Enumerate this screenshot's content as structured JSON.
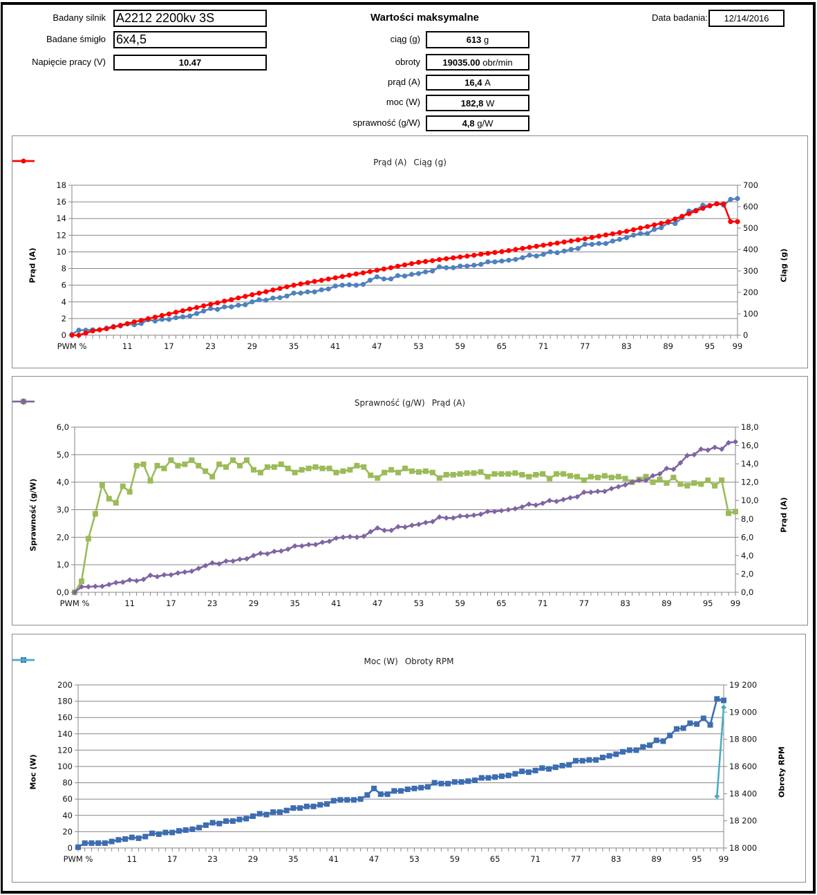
{
  "header": {
    "motor_label": "Badany silnik",
    "motor_value": "A2212 2200kv 3S",
    "prop_label": "Badane śmigło",
    "prop_value": "6x4,5",
    "voltage_label": "Napięcie pracy (V)",
    "voltage_value": "10.47",
    "max_title": "Wartości maksymalne",
    "date_label": "Data badania:",
    "date_value": "12/14/2016",
    "max": [
      {
        "label": "ciąg (g)",
        "value": "613",
        "unit": "g"
      },
      {
        "label": "obroty",
        "value": "19035.00",
        "unit": "obr/min"
      },
      {
        "label": "prąd  (A)",
        "value": "16,4",
        "unit": "A"
      },
      {
        "label": "moc  (W)",
        "value": "182,8",
        "unit": "W"
      },
      {
        "label": "sprawność (g/W)",
        "value": "4,8",
        "unit": "g/W"
      }
    ]
  },
  "chart_data": [
    {
      "type": "line",
      "title": "",
      "categories": [
        "PWM %",
        "4",
        "5",
        "6",
        "7",
        "8",
        "9",
        "10",
        "11",
        "12",
        "13",
        "14",
        "15",
        "16",
        "17",
        "18",
        "19",
        "20",
        "21",
        "22",
        "23",
        "24",
        "25",
        "26",
        "27",
        "28",
        "29",
        "30",
        "31",
        "32",
        "33",
        "34",
        "35",
        "36",
        "37",
        "38",
        "39",
        "40",
        "41",
        "42",
        "43",
        "44",
        "45",
        "46",
        "47",
        "48",
        "49",
        "50",
        "51",
        "52",
        "53",
        "54",
        "55",
        "56",
        "57",
        "58",
        "59",
        "60",
        "61",
        "62",
        "63",
        "64",
        "65",
        "66",
        "67",
        "68",
        "69",
        "70",
        "71",
        "72",
        "73",
        "74",
        "75",
        "76",
        "77",
        "78",
        "79",
        "80",
        "81",
        "82",
        "83",
        "84",
        "85",
        "86",
        "87",
        "88",
        "89",
        "90",
        "91",
        "92",
        "93",
        "94",
        "95",
        "96",
        "97",
        "98",
        "99"
      ],
      "x_tick_labels": [
        "PWM %",
        "11",
        "17",
        "23",
        "29",
        "35",
        "41",
        "47",
        "53",
        "59",
        "65",
        "71",
        "77",
        "83",
        "89",
        "95",
        "99"
      ],
      "y_left": {
        "label": "Prąd (A)",
        "min": 0,
        "max": 18,
        "grid_step": 2,
        "label_step": 2,
        "tick_labels": [
          "0",
          "2",
          "4",
          "6",
          "8",
          "10",
          "12",
          "14",
          "16",
          "18"
        ]
      },
      "y_right": {
        "label": "Ciąg (g)",
        "min": 0,
        "max": 700,
        "label_step": 100,
        "tick_labels": [
          "0",
          "100",
          "200",
          "300",
          "400",
          "500",
          "600",
          "700"
        ]
      },
      "legend_position": "top",
      "grid": true,
      "series": [
        {
          "name": "Prąd (A)",
          "axis": "left",
          "color": "#4F81BD",
          "marker": "circle",
          "values": [
            0.1,
            0.6,
            0.6,
            0.65,
            0.65,
            0.85,
            1.05,
            1.1,
            1.35,
            1.25,
            1.4,
            1.85,
            1.7,
            1.9,
            1.9,
            2.1,
            2.2,
            2.3,
            2.6,
            2.9,
            3.2,
            3.1,
            3.4,
            3.4,
            3.6,
            3.65,
            4.0,
            4.25,
            4.2,
            4.45,
            4.5,
            4.7,
            5.05,
            5.05,
            5.2,
            5.2,
            5.45,
            5.55,
            5.9,
            6.0,
            6.05,
            6.0,
            6.1,
            6.6,
            7.0,
            6.75,
            6.75,
            7.15,
            7.1,
            7.3,
            7.4,
            7.6,
            7.7,
            8.2,
            8.1,
            8.1,
            8.3,
            8.3,
            8.4,
            8.5,
            8.8,
            8.8,
            8.9,
            9.0,
            9.1,
            9.3,
            9.6,
            9.5,
            9.7,
            10.0,
            9.9,
            10.1,
            10.3,
            10.4,
            10.9,
            10.9,
            11.0,
            11.0,
            11.3,
            11.5,
            11.7,
            12.0,
            12.2,
            12.2,
            12.7,
            12.9,
            13.5,
            13.4,
            14.1,
            14.9,
            15.0,
            15.6,
            15.5,
            15.8,
            15.6,
            16.3,
            16.4
          ]
        },
        {
          "name": "Ciąg (g)",
          "axis": "right",
          "color": "#FF0000",
          "marker": "circle",
          "values": [
            0,
            0,
            10,
            20,
            25,
            30,
            38,
            46,
            54,
            62,
            69,
            77,
            84,
            92,
            99,
            107,
            114,
            122,
            129,
            137,
            144,
            151,
            159,
            166,
            174,
            181,
            189,
            196,
            203,
            211,
            218,
            226,
            233,
            239,
            245,
            251,
            256,
            262,
            268,
            274,
            280,
            286,
            291,
            297,
            303,
            309,
            315,
            322,
            328,
            334,
            340,
            344,
            348,
            353,
            357,
            361,
            365,
            369,
            373,
            378,
            382,
            386,
            390,
            395,
            400,
            405,
            410,
            415,
            420,
            425,
            430,
            435,
            440,
            445,
            450,
            456,
            462,
            468,
            473,
            479,
            485,
            492,
            500,
            507,
            515,
            522,
            530,
            542,
            555,
            567,
            580,
            592,
            605,
            613,
            613,
            530,
            530
          ]
        }
      ]
    },
    {
      "type": "line",
      "title": "",
      "categories": [
        "PWM %",
        "4",
        "5",
        "6",
        "7",
        "8",
        "9",
        "10",
        "11",
        "12",
        "13",
        "14",
        "15",
        "16",
        "17",
        "18",
        "19",
        "20",
        "21",
        "22",
        "23",
        "24",
        "25",
        "26",
        "27",
        "28",
        "29",
        "30",
        "31",
        "32",
        "33",
        "34",
        "35",
        "36",
        "37",
        "38",
        "39",
        "40",
        "41",
        "42",
        "43",
        "44",
        "45",
        "46",
        "47",
        "48",
        "49",
        "50",
        "51",
        "52",
        "53",
        "54",
        "55",
        "56",
        "57",
        "58",
        "59",
        "60",
        "61",
        "62",
        "63",
        "64",
        "65",
        "66",
        "67",
        "68",
        "69",
        "70",
        "71",
        "72",
        "73",
        "74",
        "75",
        "76",
        "77",
        "78",
        "79",
        "80",
        "81",
        "82",
        "83",
        "84",
        "85",
        "86",
        "87",
        "88",
        "89",
        "90",
        "91",
        "92",
        "93",
        "94",
        "95",
        "96",
        "97",
        "98",
        "99"
      ],
      "x_tick_labels": [
        "PWM %",
        "11",
        "17",
        "23",
        "29",
        "35",
        "41",
        "47",
        "53",
        "59",
        "65",
        "71",
        "77",
        "83",
        "89",
        "95",
        "99"
      ],
      "y_left": {
        "label": "Sprawność (g/W)",
        "min": 0,
        "max": 6,
        "grid_step": 1,
        "label_step": 1,
        "tick_labels": [
          "0,0",
          "1,0",
          "2,0",
          "3,0",
          "4,0",
          "5,0",
          "6,0"
        ]
      },
      "y_right": {
        "label": "Prąd (A)",
        "min": 0,
        "max": 18,
        "label_step": 2,
        "tick_labels": [
          "0,0",
          "2,0",
          "4,0",
          "6,0",
          "8,0",
          "10,0",
          "12,0",
          "14,0",
          "16,0",
          "18,0"
        ]
      },
      "legend_position": "top",
      "grid": true,
      "series": [
        {
          "name": "Sprawność (g/W)",
          "axis": "left",
          "color": "#9BBB59",
          "marker": "square",
          "values": [
            0.0,
            0.4,
            1.95,
            2.85,
            3.9,
            3.4,
            3.25,
            3.85,
            3.65,
            4.6,
            4.65,
            4.05,
            4.6,
            4.5,
            4.8,
            4.6,
            4.65,
            4.8,
            4.6,
            4.4,
            4.2,
            4.65,
            4.55,
            4.8,
            4.6,
            4.8,
            4.45,
            4.35,
            4.55,
            4.55,
            4.65,
            4.5,
            4.35,
            4.45,
            4.5,
            4.55,
            4.5,
            4.5,
            4.35,
            4.4,
            4.45,
            4.6,
            4.55,
            4.25,
            4.15,
            4.35,
            4.45,
            4.35,
            4.5,
            4.4,
            4.37,
            4.4,
            4.35,
            4.15,
            4.27,
            4.27,
            4.3,
            4.33,
            4.33,
            4.37,
            4.2,
            4.3,
            4.3,
            4.3,
            4.33,
            4.27,
            4.2,
            4.27,
            4.3,
            4.13,
            4.3,
            4.3,
            4.23,
            4.2,
            4.07,
            4.2,
            4.17,
            4.23,
            4.17,
            4.2,
            4.13,
            4.0,
            4.1,
            4.2,
            4.0,
            4.1,
            3.97,
            4.17,
            3.93,
            3.87,
            3.97,
            3.93,
            4.07,
            3.87,
            4.07,
            2.87,
            2.93
          ]
        },
        {
          "name": "Prąd (A)",
          "axis": "right",
          "color": "#8064A2",
          "marker": "diamond",
          "values": [
            0.0,
            0.6,
            0.6,
            0.65,
            0.65,
            0.85,
            1.05,
            1.1,
            1.35,
            1.25,
            1.4,
            1.85,
            1.7,
            1.9,
            1.9,
            2.1,
            2.2,
            2.3,
            2.6,
            2.9,
            3.2,
            3.1,
            3.4,
            3.4,
            3.6,
            3.65,
            4.0,
            4.25,
            4.2,
            4.45,
            4.5,
            4.7,
            5.05,
            5.05,
            5.2,
            5.2,
            5.45,
            5.55,
            5.9,
            6.0,
            6.05,
            6.0,
            6.1,
            6.6,
            7.0,
            6.75,
            6.75,
            7.15,
            7.1,
            7.3,
            7.4,
            7.6,
            7.7,
            8.2,
            8.1,
            8.1,
            8.3,
            8.3,
            8.4,
            8.5,
            8.8,
            8.8,
            8.9,
            9.0,
            9.1,
            9.3,
            9.6,
            9.5,
            9.7,
            10.0,
            9.9,
            10.1,
            10.3,
            10.4,
            10.9,
            10.9,
            11.0,
            11.0,
            11.3,
            11.5,
            11.7,
            12.0,
            12.2,
            12.2,
            12.7,
            12.9,
            13.5,
            13.4,
            14.1,
            14.9,
            15.0,
            15.6,
            15.5,
            15.8,
            15.6,
            16.3,
            16.4
          ]
        }
      ]
    },
    {
      "type": "line",
      "title": "",
      "categories": [
        "PWM %",
        "4",
        "5",
        "6",
        "7",
        "8",
        "9",
        "10",
        "11",
        "12",
        "13",
        "14",
        "15",
        "16",
        "17",
        "18",
        "19",
        "20",
        "21",
        "22",
        "23",
        "24",
        "25",
        "26",
        "27",
        "28",
        "29",
        "30",
        "31",
        "32",
        "33",
        "34",
        "35",
        "36",
        "37",
        "38",
        "39",
        "40",
        "41",
        "42",
        "43",
        "44",
        "45",
        "46",
        "47",
        "48",
        "49",
        "50",
        "51",
        "52",
        "53",
        "54",
        "55",
        "56",
        "57",
        "58",
        "59",
        "60",
        "61",
        "62",
        "63",
        "64",
        "65",
        "66",
        "67",
        "68",
        "69",
        "70",
        "71",
        "72",
        "73",
        "74",
        "75",
        "76",
        "77",
        "78",
        "79",
        "80",
        "81",
        "82",
        "83",
        "84",
        "85",
        "86",
        "87",
        "88",
        "89",
        "90",
        "91",
        "92",
        "93",
        "94",
        "95",
        "96",
        "97",
        "98",
        "99"
      ],
      "x_tick_labels": [
        "PWM %",
        "11",
        "17",
        "23",
        "29",
        "35",
        "41",
        "47",
        "53",
        "59",
        "65",
        "71",
        "77",
        "83",
        "89",
        "95",
        "99"
      ],
      "y_left": {
        "label": "Moc (W)",
        "min": 0,
        "max": 200,
        "grid_step": 20,
        "label_step": 20,
        "tick_labels": [
          "0",
          "20",
          "40",
          "60",
          "80",
          "100",
          "120",
          "140",
          "160",
          "180",
          "200"
        ]
      },
      "y_right": {
        "label": "Obroty  RPM",
        "min": 18000,
        "max": 19200,
        "label_step": 200,
        "tick_labels": [
          "18 000",
          "18 200",
          "18 400",
          "18 600",
          "18 800",
          "19 000",
          "19 200"
        ]
      },
      "legend_position": "top",
      "grid": true,
      "series": [
        {
          "name": "Moc (W)",
          "axis": "left",
          "color": "#3D6DB0",
          "marker": "square",
          "values": [
            1,
            6,
            6,
            6,
            6,
            8,
            10,
            11,
            13,
            12,
            14,
            18,
            17,
            19,
            19,
            21,
            22,
            23,
            25,
            28,
            31,
            30,
            33,
            33,
            35,
            36,
            39,
            42,
            41,
            44,
            44,
            46,
            49,
            49,
            51,
            51,
            53,
            54,
            58,
            59,
            59,
            59,
            60,
            65,
            73,
            66,
            66,
            70,
            70,
            72,
            73,
            74,
            75,
            80,
            79,
            79,
            81,
            81,
            82,
            83,
            86,
            86,
            87,
            88,
            89,
            91,
            94,
            93,
            95,
            98,
            97,
            99,
            101,
            102,
            107,
            107,
            108,
            108,
            111,
            113,
            115,
            118,
            120,
            120,
            124,
            126,
            132,
            131,
            138,
            146,
            147,
            153,
            152,
            159,
            151,
            182.8,
            181
          ]
        },
        {
          "name": "Obroty RPM",
          "axis": "right",
          "color": "#4BACC6",
          "marker": "diamond",
          "points": [
            {
              "x": "98",
              "y": 18380
            },
            {
              "x": "99",
              "y": 19035
            }
          ]
        }
      ]
    }
  ]
}
